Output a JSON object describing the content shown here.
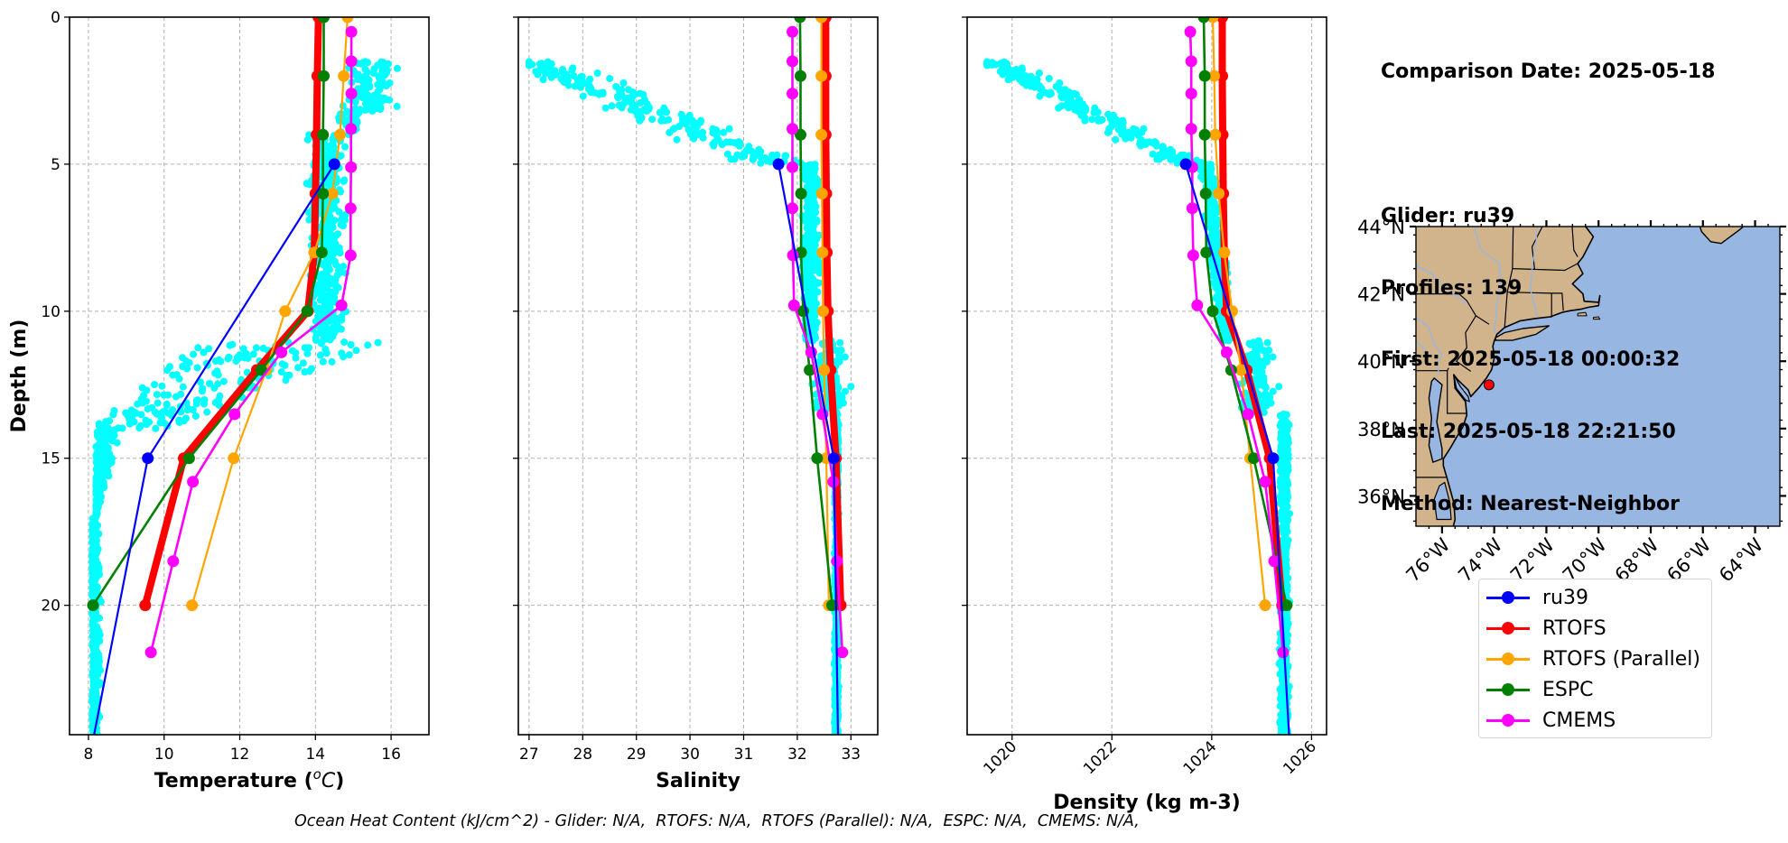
{
  "info": {
    "comparison_date": "Comparison Date: 2025-05-18",
    "glider": "Glider: ru39",
    "profiles": "Profiles: 139",
    "first": "First: 2025-05-18 00:00:32",
    "last": "Last: 2025-05-18 22:21:50",
    "method": "Method: Nearest-Neighbor"
  },
  "caption": "Ocean Heat Content (kJ/cm^2) - Glider: N/A,  RTOFS: N/A,  RTOFS (Parallel): N/A,  ESPC: N/A,  CMEMS: N/A,",
  "legend": [
    {
      "label": "ru39",
      "color": "#0000ff"
    },
    {
      "label": "RTOFS",
      "color": "#ff0000"
    },
    {
      "label": "RTOFS (Parallel)",
      "color": "#ffa500"
    },
    {
      "label": "ESPC",
      "color": "#008000"
    },
    {
      "label": "CMEMS",
      "color": "#ff00ff"
    }
  ],
  "colors": {
    "glider_scatter": "#00ffff",
    "ru39": "#0000ff",
    "RTOFS": "#ff0000",
    "RTOFS (Parallel)": "#ffa500",
    "ESPC": "#008000",
    "CMEMS": "#ff00ff",
    "land": "#d2b48c",
    "ocean": "#97b6e1",
    "grid": "#b0b0b0"
  },
  "chart_data": [
    {
      "type": "line",
      "panel": "temperature",
      "xlabel": "Temperature (°C)",
      "xlabel_main": "Temperature (",
      "xlabel_unit": "oC",
      "xlabel_close": ")",
      "ylabel": "Depth (m)",
      "xlim": [
        7.5,
        17.0
      ],
      "ylim": [
        24.4,
        0
      ],
      "xticks": [
        8,
        10,
        12,
        14,
        16
      ],
      "yticks": [
        0,
        5,
        10,
        15,
        20
      ],
      "grid": true,
      "series": [
        {
          "name": "ru39",
          "depth": [
            5,
            15,
            24.4
          ],
          "values": [
            14.5,
            9.57,
            8.15
          ]
        },
        {
          "name": "RTOFS",
          "depth": [
            0,
            2,
            4,
            6,
            8,
            10,
            12,
            15,
            20
          ],
          "values": [
            14.08,
            14.05,
            14.03,
            14.0,
            13.97,
            13.8,
            12.45,
            10.52,
            9.5
          ]
        },
        {
          "name": "RTOFS (Parallel)",
          "depth": [
            0,
            2,
            4,
            6,
            8,
            10,
            12,
            15,
            20
          ],
          "values": [
            14.85,
            14.75,
            14.65,
            14.45,
            13.97,
            13.2,
            12.7,
            11.84,
            10.74
          ]
        },
        {
          "name": "ESPC",
          "depth": [
            0,
            2,
            4,
            6,
            8,
            10,
            12,
            15,
            20
          ],
          "values": [
            14.22,
            14.22,
            14.2,
            14.2,
            14.17,
            13.78,
            12.57,
            10.66,
            8.12
          ]
        },
        {
          "name": "CMEMS",
          "depth": [
            0.5,
            1.5,
            2.6,
            3.8,
            5.1,
            6.5,
            8.1,
            9.8,
            11.4,
            13.5,
            15.8,
            18.5,
            21.6
          ],
          "values": [
            14.95,
            14.95,
            14.95,
            14.94,
            14.94,
            14.93,
            14.93,
            14.69,
            13.1,
            11.86,
            10.76,
            10.24,
            9.65
          ]
        }
      ],
      "glider_scatter_envelope": {
        "description": "ru39 glider observations (139 profiles), cyan points",
        "depth_range": [
          1.5,
          24.4
        ],
        "value_range": [
          8.0,
          16.5
        ]
      }
    },
    {
      "type": "line",
      "panel": "salinity",
      "xlabel": "Salinity",
      "xlim": [
        26.8,
        33.5
      ],
      "ylim": [
        24.4,
        0
      ],
      "xticks": [
        27,
        28,
        29,
        30,
        31,
        32,
        33
      ],
      "yticks": [
        0,
        5,
        10,
        15,
        20
      ],
      "grid": true,
      "series": [
        {
          "name": "ru39",
          "depth": [
            5,
            15,
            24.4
          ],
          "values": [
            31.65,
            32.68,
            32.76
          ]
        },
        {
          "name": "RTOFS",
          "depth": [
            0,
            2,
            4,
            6,
            8,
            10,
            12,
            15,
            20
          ],
          "values": [
            32.53,
            32.53,
            32.53,
            32.54,
            32.55,
            32.57,
            32.62,
            32.72,
            32.81
          ]
        },
        {
          "name": "RTOFS (Parallel)",
          "depth": [
            0,
            2,
            4,
            6,
            8,
            10,
            12,
            15,
            20
          ],
          "values": [
            32.45,
            32.45,
            32.45,
            32.46,
            32.47,
            32.48,
            32.5,
            32.54,
            32.59
          ]
        },
        {
          "name": "ESPC",
          "depth": [
            0,
            2,
            4,
            6,
            8,
            10,
            12,
            15,
            20
          ],
          "values": [
            32.05,
            32.06,
            32.06,
            32.07,
            32.07,
            32.11,
            32.23,
            32.37,
            32.65
          ]
        },
        {
          "name": "CMEMS",
          "depth": [
            0.5,
            1.5,
            2.6,
            3.8,
            5.1,
            6.5,
            8.1,
            9.8,
            11.4,
            13.5,
            15.8,
            18.5,
            21.6
          ],
          "values": [
            31.91,
            31.91,
            31.91,
            31.91,
            31.91,
            31.91,
            31.92,
            31.94,
            32.26,
            32.47,
            32.67,
            32.74,
            32.84
          ]
        }
      ],
      "glider_scatter_envelope": {
        "description": "ru39 glider observations (139 profiles), cyan points",
        "depth_range": [
          1.5,
          24.4
        ],
        "value_range": [
          27.0,
          33.3
        ]
      }
    },
    {
      "type": "line",
      "panel": "density",
      "xlabel": "Density (kg m-3)",
      "xlim": [
        1019.1,
        1026.3
      ],
      "ylim": [
        24.4,
        0
      ],
      "xticks": [
        1020,
        1022,
        1024,
        1026
      ],
      "xtick_rotation": 45,
      "yticks": [
        0,
        5,
        10,
        15,
        20
      ],
      "grid": true,
      "series": [
        {
          "name": "ru39",
          "depth": [
            5,
            15,
            24.4
          ],
          "values": [
            1023.48,
            1025.23,
            1025.55
          ]
        },
        {
          "name": "RTOFS",
          "depth": [
            0,
            2,
            4,
            6,
            8,
            10,
            12,
            15,
            20
          ],
          "values": [
            1024.21,
            1024.21,
            1024.22,
            1024.23,
            1024.25,
            1024.3,
            1024.7,
            1025.16,
            1025.41
          ]
        },
        {
          "name": "RTOFS (Parallel)",
          "depth": [
            0,
            2,
            4,
            6,
            8,
            10,
            12,
            15,
            20
          ],
          "values": [
            1024.02,
            1024.05,
            1024.07,
            1024.14,
            1024.25,
            1024.41,
            1024.59,
            1024.77,
            1025.07
          ]
        },
        {
          "name": "ESPC",
          "depth": [
            0,
            2,
            4,
            6,
            8,
            10,
            12,
            15,
            20
          ],
          "values": [
            1023.84,
            1023.86,
            1023.86,
            1023.88,
            1023.89,
            1024.02,
            1024.39,
            1024.84,
            1025.5
          ]
        },
        {
          "name": "CMEMS",
          "depth": [
            0.5,
            1.5,
            2.6,
            3.8,
            5.1,
            6.5,
            8.1,
            9.8,
            11.4,
            13.5,
            15.8,
            18.5,
            21.6
          ],
          "values": [
            1023.57,
            1023.59,
            1023.59,
            1023.59,
            1023.61,
            1023.61,
            1023.63,
            1023.71,
            1024.3,
            1024.73,
            1025.07,
            1025.25,
            1025.43
          ]
        }
      ],
      "glider_scatter_envelope": {
        "description": "ru39 glider observations (139 profiles), cyan points",
        "depth_range": [
          1.5,
          24.4
        ],
        "value_range": [
          1019.6,
          1025.8
        ]
      }
    },
    {
      "type": "map",
      "panel": "location-map",
      "lon_range": [
        -77.0,
        -63.05
      ],
      "lat_range": [
        35.1,
        44.0
      ],
      "xticks": [
        "76°W",
        "74°W",
        "72°W",
        "70°W",
        "68°W",
        "66°W",
        "64°W"
      ],
      "xtick_values": [
        -76,
        -74,
        -72,
        -70,
        -68,
        -66,
        -64
      ],
      "yticks": [
        "36°N",
        "38°N",
        "40°N",
        "42°N",
        "44°N"
      ],
      "ytick_values": [
        36,
        38,
        40,
        42,
        44
      ],
      "glider_position": {
        "lon": -74.2,
        "lat": 39.3
      }
    }
  ]
}
